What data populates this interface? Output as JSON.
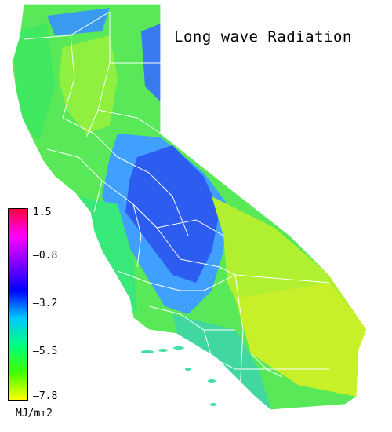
{
  "map": {
    "title": "Long wave Radiation",
    "region": "California counties"
  },
  "legend": {
    "unit": "MJ/m↑2",
    "ticks": [
      "1.5",
      "–0.8",
      "–3.2",
      "–5.5",
      "–7.8"
    ],
    "range": [
      -7.8,
      1.5
    ],
    "gradient_colors": [
      "#ff0040",
      "#ff00ff",
      "#8000ff",
      "#0000ff",
      "#00c8ff",
      "#00ff80",
      "#40ff00",
      "#ffff00"
    ]
  },
  "colors": {
    "north_valley": "#90f040",
    "coast": "#40e860",
    "central": "#3060f0",
    "central_light": "#40a0ff",
    "desert": "#c8f028",
    "desert_south": "#a8ee30",
    "county_lines": "#ffffff"
  }
}
